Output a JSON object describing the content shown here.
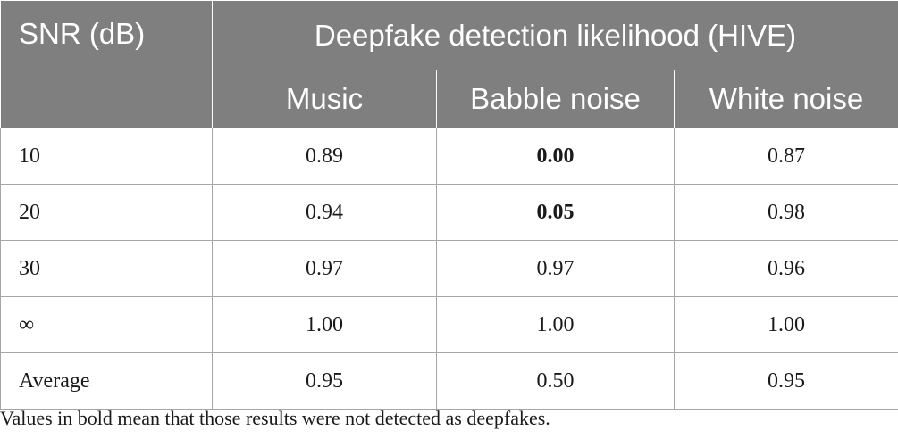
{
  "table": {
    "snr_header": "SNR (dB)",
    "group_header": "Deepfake detection likelihood (HIVE)",
    "columns": [
      "Music",
      "Babble noise",
      "White noise"
    ],
    "rows": [
      {
        "label": "10",
        "values": [
          "0.89",
          "0.00",
          "0.87"
        ],
        "bold": [
          false,
          true,
          false
        ]
      },
      {
        "label": "20",
        "values": [
          "0.94",
          "0.05",
          "0.98"
        ],
        "bold": [
          false,
          true,
          false
        ]
      },
      {
        "label": "30",
        "values": [
          "0.97",
          "0.97",
          "0.96"
        ],
        "bold": [
          false,
          false,
          false
        ]
      },
      {
        "label": "∞",
        "values": [
          "1.00",
          "1.00",
          "1.00"
        ],
        "bold": [
          false,
          false,
          false
        ]
      },
      {
        "label": "Average",
        "values": [
          "0.95",
          "0.50",
          "0.95"
        ],
        "bold": [
          false,
          false,
          false
        ]
      }
    ]
  },
  "footnote": "Values in bold mean that those results were not detected as deepfakes.",
  "colors": {
    "header_bg": "#7f7f7f",
    "header_text": "#ffffff",
    "grid": "#a6a6a6",
    "body_text": "#1a1a1a"
  }
}
